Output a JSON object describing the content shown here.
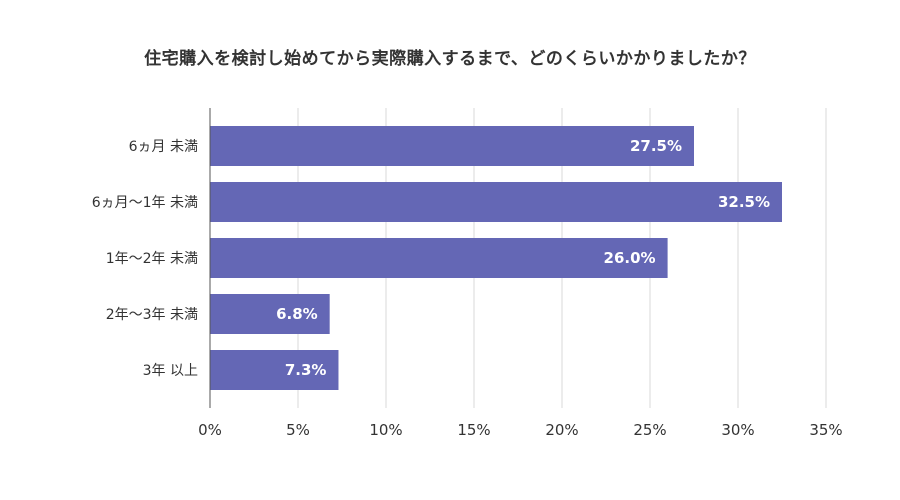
{
  "chart_data": {
    "type": "bar",
    "orientation": "horizontal",
    "title": "住宅購入を検討し始めてから実際購入するまで、どのくらいかかりましたか？",
    "categories": [
      "6ヵ月 未満",
      "6ヵ月〜1年 未満",
      "1年〜2年 未満",
      "2年〜3年 未満",
      "3年 以上"
    ],
    "values": [
      27.5,
      32.5,
      26.0,
      6.8,
      7.3
    ],
    "value_labels": [
      "27.5%",
      "32.5%",
      "26.0%",
      "6.8%",
      "7.3%"
    ],
    "xlim": [
      0,
      35
    ],
    "x_ticks": [
      0,
      5,
      10,
      15,
      20,
      25,
      30,
      35
    ],
    "x_tick_labels": [
      "0%",
      "5%",
      "10%",
      "15%",
      "20%",
      "25%",
      "30%",
      "35%"
    ],
    "xlabel": "",
    "ylabel": "",
    "grid": true,
    "legend": "none",
    "bar_color": "#6467b5"
  }
}
